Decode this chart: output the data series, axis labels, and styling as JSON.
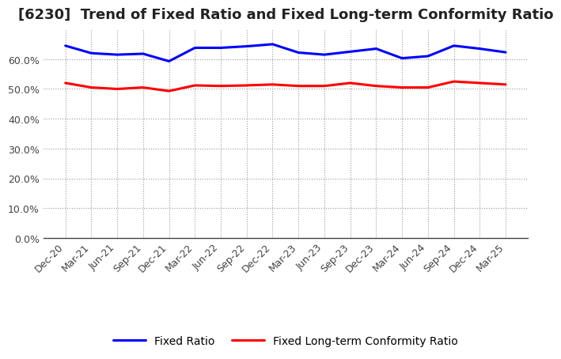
{
  "title": "[6230]  Trend of Fixed Ratio and Fixed Long-term Conformity Ratio",
  "x_labels": [
    "Dec-20",
    "Mar-21",
    "Jun-21",
    "Sep-21",
    "Dec-21",
    "Mar-22",
    "Jun-22",
    "Sep-22",
    "Dec-22",
    "Mar-23",
    "Jun-23",
    "Sep-23",
    "Dec-23",
    "Mar-24",
    "Jun-24",
    "Sep-24",
    "Dec-24",
    "Mar-25"
  ],
  "fixed_ratio": [
    64.5,
    62.0,
    61.5,
    61.8,
    59.3,
    63.8,
    63.8,
    64.3,
    65.0,
    62.2,
    61.5,
    62.5,
    63.5,
    60.3,
    61.0,
    64.5,
    63.5,
    62.3
  ],
  "fixed_lt_ratio": [
    52.0,
    50.5,
    50.0,
    50.5,
    49.3,
    51.2,
    51.0,
    51.2,
    51.5,
    51.0,
    51.0,
    52.0,
    51.0,
    50.5,
    50.5,
    52.5,
    52.0,
    51.5
  ],
  "fixed_ratio_color": "#0000FF",
  "fixed_lt_ratio_color": "#FF0000",
  "ylim": [
    0,
    70
  ],
  "yticks": [
    0,
    10,
    20,
    30,
    40,
    50,
    60
  ],
  "background_color": "#FFFFFF",
  "plot_bg_color": "#FFFFFF",
  "grid_color": "#999999",
  "legend_fixed_ratio": "Fixed Ratio",
  "legend_fixed_lt_ratio": "Fixed Long-term Conformity Ratio",
  "line_width": 2.2,
  "title_fontsize": 13,
  "tick_fontsize": 9,
  "legend_fontsize": 10
}
